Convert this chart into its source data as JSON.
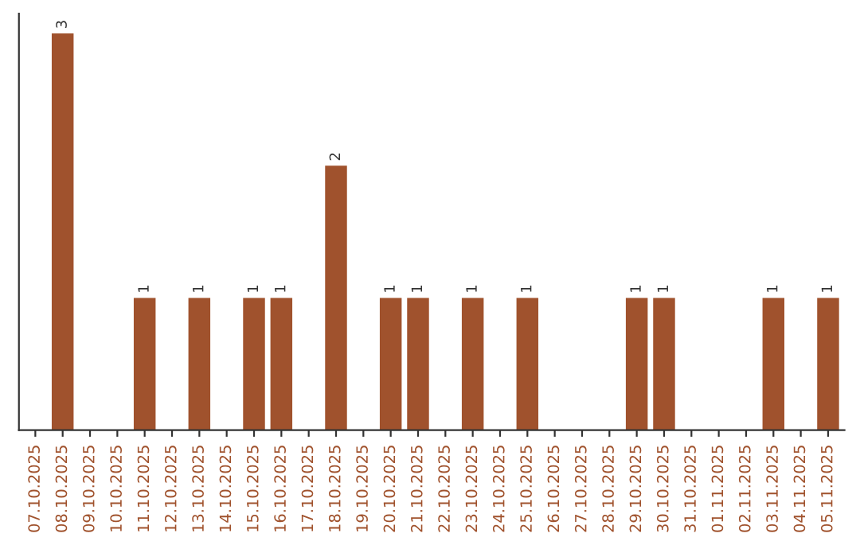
{
  "chart_data": {
    "type": "bar",
    "categories": [
      "07.10.2025",
      "08.10.2025",
      "09.10.2025",
      "10.10.2025",
      "11.10.2025",
      "12.10.2025",
      "13.10.2025",
      "14.10.2025",
      "15.10.2025",
      "16.10.2025",
      "17.10.2025",
      "18.10.2025",
      "19.10.2025",
      "20.10.2025",
      "21.10.2025",
      "22.10.2025",
      "23.10.2025",
      "24.10.2025",
      "25.10.2025",
      "26.10.2025",
      "27.10.2025",
      "28.10.2025",
      "29.10.2025",
      "30.10.2025",
      "31.10.2025",
      "01.11.2025",
      "02.11.2025",
      "03.11.2025",
      "04.11.2025",
      "05.11.2025"
    ],
    "values": [
      0,
      3,
      0,
      0,
      1,
      0,
      1,
      0,
      1,
      1,
      0,
      2,
      0,
      1,
      1,
      0,
      1,
      0,
      1,
      0,
      0,
      0,
      1,
      1,
      0,
      0,
      0,
      1,
      0,
      1
    ],
    "value_labels": [
      null,
      "3",
      null,
      null,
      "1",
      null,
      "1",
      null,
      "1",
      "1",
      null,
      "2",
      null,
      "1",
      "1",
      null,
      "1",
      null,
      "1",
      null,
      null,
      null,
      "1",
      "1",
      null,
      null,
      null,
      "1",
      null,
      "1"
    ],
    "color": "#a0522d",
    "tick_labels": "x",
    "grid": false,
    "legend": false
  }
}
